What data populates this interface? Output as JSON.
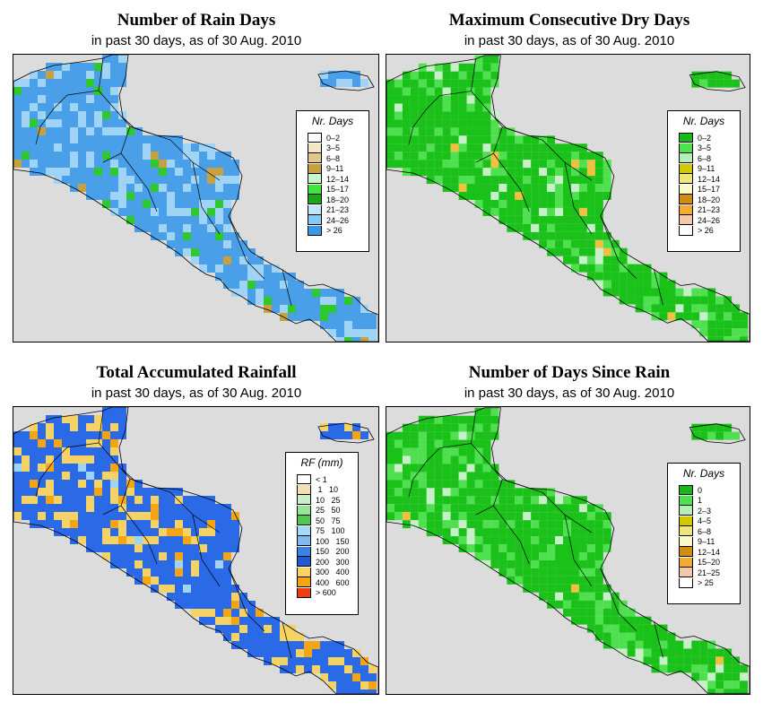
{
  "subtitle": "in past 30 days, as of  30 Aug. 2010",
  "panels": [
    {
      "title": "Number of Rain Days",
      "legend_title": "Nr. Days",
      "base_fill": "#4aa0e8",
      "mix": [
        "#9fd4f6",
        "#2fc82f",
        "#c8a040"
      ],
      "legend": [
        {
          "label": "0–2",
          "color": "#fafafa"
        },
        {
          "label": "3–5",
          "color": "#f3e6c4"
        },
        {
          "label": "6–8",
          "color": "#e2c98a"
        },
        {
          "label": "9–11",
          "color": "#c8a040"
        },
        {
          "label": "12–14",
          "color": "#cdf5cd"
        },
        {
          "label": "15–17",
          "color": "#3ee63e"
        },
        {
          "label": "18–20",
          "color": "#1ea51e"
        },
        {
          "label": "21–23",
          "color": "#bfe6fa"
        },
        {
          "label": "24–26",
          "color": "#87c8f5"
        },
        {
          "label": "> 26",
          "color": "#3a98e4"
        }
      ]
    },
    {
      "title": "Maximum Consecutive Dry Days",
      "legend_title": "Nr. Days",
      "base_fill": "#19c119",
      "mix": [
        "#4ee04e",
        "#c8f0c8",
        "#f0c040"
      ],
      "legend": [
        {
          "label": "0–2",
          "color": "#18b818"
        },
        {
          "label": "3–5",
          "color": "#4ee04e"
        },
        {
          "label": "6–8",
          "color": "#b4f0b4"
        },
        {
          "label": "9–11",
          "color": "#d2c800"
        },
        {
          "label": "12–14",
          "color": "#f0e678"
        },
        {
          "label": "15–17",
          "color": "#fafac8"
        },
        {
          "label": "18–20",
          "color": "#d28c14"
        },
        {
          "label": "21–23",
          "color": "#f5aa32"
        },
        {
          "label": "24–26",
          "color": "#f5c8aa"
        },
        {
          "label": "> 26",
          "color": "#ffffff"
        }
      ]
    },
    {
      "title": "Total Accumulated Rainfall",
      "legend_title": "RF (mm)",
      "base_fill": "#2a6ae6",
      "mix": [
        "#f5d264",
        "#f5a514",
        "#9fd4f6"
      ],
      "legend": [
        {
          "label": "< 1",
          "color": "#ffffff"
        },
        {
          "label": " 1   10",
          "color": "#f5deb4"
        },
        {
          "label": "10   25",
          "color": "#c8f0c8"
        },
        {
          "label": "25   50",
          "color": "#96e696"
        },
        {
          "label": "50   75",
          "color": "#50c850"
        },
        {
          "label": "75   100",
          "color": "#a0dcf5"
        },
        {
          "label": "100   150",
          "color": "#82b9f0"
        },
        {
          "label": "150   200",
          "color": "#3c82e6"
        },
        {
          "label": "200   300",
          "color": "#1e5ad2"
        },
        {
          "label": "300   400",
          "color": "#fad264"
        },
        {
          "label": "400   600",
          "color": "#f5a514"
        },
        {
          "label": "> 600",
          "color": "#f03c14"
        }
      ]
    },
    {
      "title": "Number of Days Since Rain",
      "legend_title": "Nr. Days",
      "base_fill": "#19c119",
      "mix": [
        "#4ee04e",
        "#c8f0c8",
        "#f0c040"
      ],
      "legend": [
        {
          "label": "0",
          "color": "#18b818"
        },
        {
          "label": "1",
          "color": "#4ee04e"
        },
        {
          "label": "2–3",
          "color": "#b4f0b4"
        },
        {
          "label": "4–5",
          "color": "#d2c800"
        },
        {
          "label": "6–8",
          "color": "#f0e678"
        },
        {
          "label": "9–11",
          "color": "#fafac8"
        },
        {
          "label": "12–14",
          "color": "#d28c14"
        },
        {
          "label": "15–20",
          "color": "#f5aa32"
        },
        {
          "label": "21–25",
          "color": "#f5c8aa"
        },
        {
          "label": "> 25",
          "color": "#ffffff"
        }
      ]
    }
  ]
}
